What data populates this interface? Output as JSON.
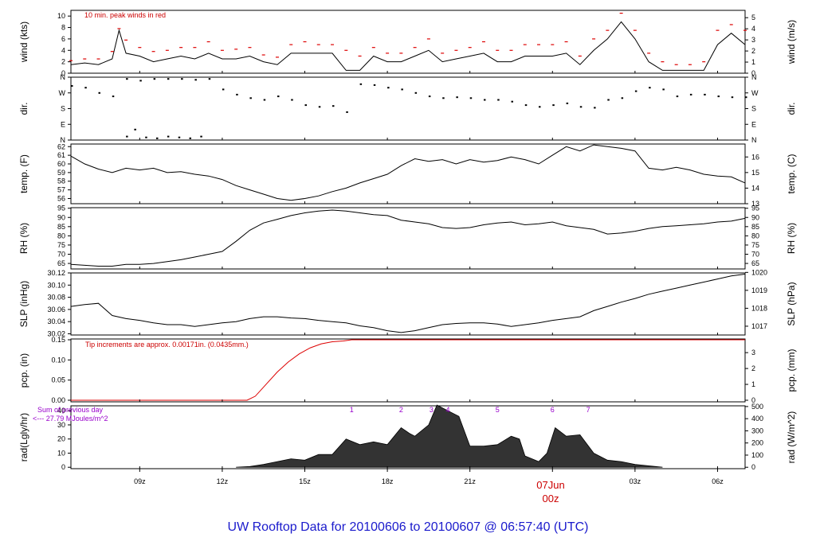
{
  "footer": {
    "title": "UW Rooftop Data for 20100606  to  20100607 @ 06:57:40  (UTC)"
  },
  "colors": {
    "series": "#000000",
    "peak": "#dd0000",
    "precip": "#dd0000",
    "radiation": "#333333",
    "note_red": "#cc0000",
    "note_purple": "#9900cc",
    "title": "#1a1acc"
  },
  "chart_data": [
    {
      "id": "wind",
      "type": "line",
      "ylabel_left": "wind (kts)",
      "ylabel_right": "wind (m/s)",
      "ylim": [
        0,
        11
      ],
      "yticks_left": [
        0,
        2,
        4,
        6,
        8,
        10
      ],
      "right_ylim": [
        0,
        5.66
      ],
      "yticks_right": [
        0,
        1,
        2,
        3,
        4,
        5
      ],
      "annotation": "10 min. peak winds in red",
      "x_hours": [
        6.5,
        7,
        7.5,
        8,
        8.25,
        8.5,
        9,
        9.5,
        10,
        10.5,
        11,
        11.5,
        12,
        12.5,
        13,
        13.5,
        14,
        14.5,
        15,
        15.5,
        16,
        16.5,
        17,
        17.5,
        18,
        18.5,
        19,
        19.5,
        20,
        20.5,
        21,
        21.5,
        22,
        22.5,
        23,
        23.5,
        24,
        24.5,
        25,
        25.5,
        26,
        26.5,
        27,
        27.5,
        28,
        28.5,
        29,
        29.5,
        30,
        30.5,
        31
      ],
      "values": [
        1.5,
        1.8,
        1.5,
        2.5,
        7.5,
        3.5,
        3,
        2,
        2.5,
        3,
        2.5,
        3.5,
        2.5,
        2.5,
        3,
        2,
        1.5,
        3.5,
        3.5,
        3.5,
        3.5,
        0.5,
        0.5,
        3,
        2,
        2,
        3,
        4,
        2,
        2.5,
        3,
        3.5,
        2,
        2,
        3,
        3,
        3,
        3.5,
        1.5,
        4,
        6,
        9,
        6,
        2,
        0.5,
        0.5,
        0.5,
        0.5,
        5,
        7,
        5
      ],
      "peaks": [
        2.2,
        2.5,
        2.5,
        3.8,
        7.8,
        5.8,
        4.5,
        3.8,
        4,
        4.5,
        4.5,
        5.5,
        4,
        4.2,
        4.5,
        3.2,
        2.8,
        5,
        5.5,
        5,
        5,
        4,
        3,
        4.5,
        3.5,
        3.5,
        4.5,
        6,
        3.5,
        4,
        4.5,
        5.5,
        4,
        4,
        5,
        5,
        5,
        5.5,
        3,
        6,
        7.5,
        10.5,
        7.5,
        3.5,
        2,
        1.5,
        1.5,
        2,
        7.5,
        8.5,
        7.5
      ]
    },
    {
      "id": "dir",
      "type": "scatter",
      "ylabel_left": "dir.",
      "ylabel_right": "dir.",
      "ylim": [
        0,
        360
      ],
      "yticks": [
        0,
        90,
        180,
        270,
        360
      ],
      "tick_labels": [
        "N",
        "E",
        "S",
        "W",
        "N"
      ],
      "x_hours": [
        6.5,
        7,
        7.5,
        8,
        8.5,
        9,
        9.5,
        10,
        10.5,
        11,
        11.5,
        12,
        12.5,
        13,
        13.5,
        14,
        14.5,
        15,
        15.5,
        16,
        16.5,
        17,
        17.5,
        18,
        18.5,
        19,
        19.5,
        20,
        20.5,
        21,
        21.5,
        22,
        22.5,
        23,
        23.5,
        24,
        24.5,
        25,
        25.5,
        26,
        26.5,
        27,
        27.5,
        28,
        28.5,
        29,
        29.5,
        30,
        30.5,
        31
      ],
      "values": [
        310,
        300,
        270,
        250,
        350,
        340,
        350,
        350,
        350,
        345,
        350,
        290,
        260,
        240,
        230,
        250,
        230,
        200,
        190,
        195,
        160,
        320,
        315,
        300,
        290,
        270,
        250,
        240,
        245,
        240,
        230,
        230,
        220,
        200,
        190,
        200,
        210,
        190,
        185,
        230,
        240,
        280,
        300,
        290,
        250,
        260,
        260,
        250,
        245,
        245
      ],
      "scatter_x": [
        8.5,
        8.8,
        9.2,
        9.6,
        10.0,
        10.4,
        10.8,
        11.2
      ],
      "scatter_y": [
        20,
        60,
        15,
        10,
        20,
        15,
        10,
        20
      ]
    },
    {
      "id": "temp",
      "type": "line",
      "ylabel_left": "temp. (F)",
      "ylabel_right": "temp. (C)",
      "ylim": [
        55.4,
        62.3
      ],
      "yticks_left": [
        56,
        57,
        58,
        59,
        60,
        61,
        62
      ],
      "right_ylim": [
        13.0,
        16.83
      ],
      "yticks_right": [
        13,
        14,
        15,
        16
      ],
      "x_hours": [
        6.5,
        7,
        7.5,
        8,
        8.5,
        9,
        9.5,
        10,
        10.5,
        11,
        11.5,
        12,
        12.5,
        13,
        13.5,
        14,
        14.5,
        15,
        15.5,
        16,
        16.5,
        17,
        17.5,
        18,
        18.5,
        19,
        19.5,
        20,
        20.5,
        21,
        21.5,
        22,
        22.5,
        23,
        23.5,
        24,
        24.5,
        25,
        25.5,
        26,
        26.5,
        27,
        27.5,
        28,
        28.5,
        29,
        29.5,
        30,
        30.5,
        31
      ],
      "values": [
        60.9,
        60.0,
        59.4,
        59.0,
        59.5,
        59.3,
        59.5,
        59.0,
        59.1,
        58.8,
        58.6,
        58.2,
        57.5,
        57.0,
        56.5,
        56.0,
        55.8,
        56.0,
        56.3,
        56.8,
        57.2,
        57.8,
        58.3,
        58.8,
        59.8,
        60.6,
        60.3,
        60.5,
        60.0,
        60.5,
        60.2,
        60.4,
        60.8,
        60.5,
        60.0,
        61.0,
        62.0,
        61.5,
        62.2,
        62.0,
        61.8,
        61.5,
        59.5,
        59.3,
        59.6,
        59.3,
        58.8,
        58.6,
        58.5,
        57.8
      ]
    },
    {
      "id": "rh",
      "type": "line",
      "ylabel_left": "RH (%)",
      "ylabel_right": "RH (%)",
      "ylim": [
        62,
        95.3
      ],
      "yticks": [
        65,
        70,
        75,
        80,
        85,
        90,
        95
      ],
      "x_hours": [
        6.5,
        7,
        7.5,
        8,
        8.5,
        9,
        9.5,
        10,
        10.5,
        11,
        11.5,
        12,
        12.5,
        13,
        13.5,
        14,
        14.5,
        15,
        15.5,
        16,
        16.5,
        17,
        17.5,
        18,
        18.5,
        19,
        19.5,
        20,
        20.5,
        21,
        21.5,
        22,
        22.5,
        23,
        23.5,
        24,
        24.5,
        25,
        25.5,
        26,
        26.5,
        27,
        27.5,
        28,
        28.5,
        29,
        29.5,
        30,
        30.5,
        31
      ],
      "values": [
        64.5,
        64.0,
        63.5,
        63.5,
        64.5,
        64.5,
        65.0,
        66.0,
        67.0,
        68.5,
        70.0,
        71.5,
        77.0,
        83.0,
        87.0,
        89.0,
        91.0,
        92.5,
        93.5,
        94.0,
        93.5,
        92.5,
        91.5,
        91.0,
        88.5,
        87.5,
        86.5,
        84.5,
        84.0,
        84.5,
        86.0,
        87.0,
        87.5,
        86.0,
        86.5,
        87.5,
        85.5,
        84.5,
        83.5,
        81.0,
        81.5,
        82.5,
        84.0,
        85.0,
        85.5,
        86.0,
        86.5,
        87.5,
        88.0,
        89.5
      ]
    },
    {
      "id": "slp",
      "type": "line",
      "ylabel_left": "SLP (inHg)",
      "ylabel_right": "SLP (hPa)",
      "ylim": [
        30.018,
        30.12
      ],
      "yticks_left": [
        30.02,
        30.04,
        30.06,
        30.08,
        30.1,
        30.12
      ],
      "tick_labels_left": [
        "30.02",
        "30.04",
        "30.06",
        "30.08",
        "30.10",
        "30.12"
      ],
      "right_ylim": [
        1016.51,
        1019.97
      ],
      "yticks_right": [
        1017,
        1018,
        1019,
        1020
      ],
      "x_hours": [
        6.5,
        7,
        7.5,
        8,
        8.5,
        9,
        9.5,
        10,
        10.5,
        11,
        11.5,
        12,
        12.5,
        13,
        13.5,
        14,
        14.5,
        15,
        15.5,
        16,
        16.5,
        17,
        17.5,
        18,
        18.5,
        19,
        19.5,
        20,
        20.5,
        21,
        21.5,
        22,
        22.5,
        23,
        23.5,
        24,
        24.5,
        25,
        25.5,
        26,
        26.5,
        27,
        27.5,
        28,
        28.5,
        29,
        29.5,
        30,
        30.5,
        31
      ],
      "values": [
        30.065,
        30.068,
        30.07,
        30.05,
        30.045,
        30.042,
        30.038,
        30.035,
        30.035,
        30.032,
        30.035,
        30.038,
        30.04,
        30.045,
        30.048,
        30.048,
        30.046,
        30.045,
        30.042,
        30.04,
        30.038,
        30.033,
        30.03,
        30.025,
        30.022,
        30.025,
        30.03,
        30.035,
        30.037,
        30.038,
        30.038,
        30.036,
        30.032,
        30.035,
        30.038,
        30.042,
        30.045,
        30.048,
        30.058,
        30.065,
        30.072,
        30.078,
        30.085,
        30.09,
        30.095,
        30.1,
        30.105,
        30.11,
        30.115,
        30.118
      ]
    },
    {
      "id": "pcp",
      "type": "line",
      "ylabel_left": "pcp. (in)",
      "ylabel_right": "pcp. (mm)",
      "ylim": [
        -0.004,
        0.152
      ],
      "yticks_left": [
        0.0,
        0.05,
        0.1,
        0.15
      ],
      "tick_labels_left": [
        "0.00",
        "0.05",
        "0.10",
        "0.15"
      ],
      "right_ylim": [
        -0.1,
        3.86
      ],
      "yticks_right": [
        0,
        1,
        2,
        3
      ],
      "annotation": "Tip increments are approx. 0.00171in. (0.0435mm.)",
      "x_hours": [
        6.5,
        12.5,
        12.9,
        13.2,
        13.6,
        14.0,
        14.4,
        14.8,
        15.2,
        15.6,
        16.0,
        16.4,
        16.7,
        17.2,
        31
      ],
      "values": [
        0.0,
        0.0,
        0.0,
        0.01,
        0.04,
        0.07,
        0.095,
        0.115,
        0.13,
        0.14,
        0.145,
        0.147,
        0.15,
        0.15,
        0.15
      ]
    },
    {
      "id": "rad",
      "type": "area",
      "ylabel_left": "rad(Lgly/hr)",
      "ylabel_right": "rad (W/m^2)",
      "ylim": [
        -1,
        43.5
      ],
      "yticks_left": [
        0,
        10,
        20,
        30,
        40
      ],
      "right_ylim": [
        -11.6,
        505.8
      ],
      "yticks_right": [
        0,
        100,
        200,
        300,
        400,
        500
      ],
      "note_line1": "Sum of previous day",
      "note_line2": "<--- 27.79 MJoules/m^2",
      "markers": [
        "1",
        "2",
        "3",
        "4",
        "5",
        "6",
        "7"
      ],
      "marker_hours": [
        16.7,
        18.5,
        19.6,
        20.2,
        22.0,
        24.0,
        25.3
      ],
      "x_hours": [
        12.5,
        13,
        13.5,
        14,
        14.5,
        15,
        15.5,
        16,
        16.5,
        17,
        17.5,
        18,
        18.5,
        18.8,
        19,
        19.5,
        19.8,
        20.2,
        20.6,
        21,
        21.5,
        22,
        22.5,
        22.8,
        23,
        23.5,
        23.8,
        24.1,
        24.5,
        25,
        25.5,
        26,
        26.5,
        27,
        27.5,
        28
      ],
      "values": [
        0,
        0.5,
        2,
        4,
        6,
        5,
        9,
        9,
        20,
        16,
        18,
        16,
        28,
        24,
        22,
        30,
        44,
        40,
        36,
        15,
        15,
        16,
        22,
        20,
        8,
        4,
        10,
        28,
        22,
        23,
        10,
        5,
        4,
        2,
        1,
        0
      ]
    }
  ],
  "xaxis": {
    "xlim": [
      6.5,
      31.0
    ],
    "ticks": [
      9,
      12,
      15,
      18,
      21,
      24,
      27,
      30
    ],
    "labels": [
      "09z",
      "12z",
      "15z",
      "18z",
      "21z",
      "00z",
      "03z",
      "06z"
    ],
    "midnight_label_line1": "07Jun",
    "midnight_label_line2": "00z"
  }
}
